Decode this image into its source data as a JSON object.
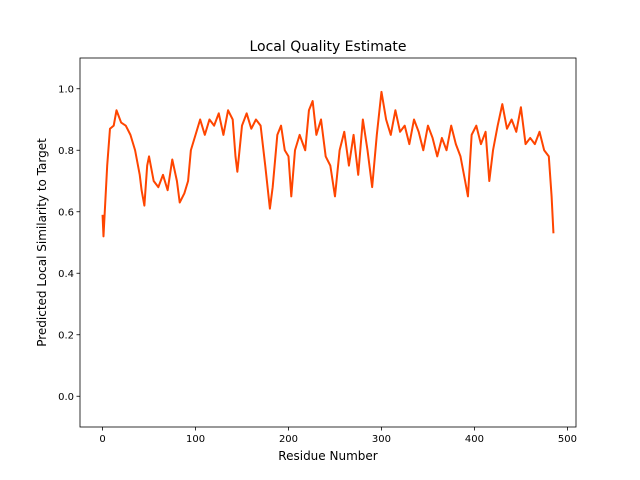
{
  "chart_data": {
    "type": "line",
    "title": "Local Quality Estimate",
    "xlabel": "Residue Number",
    "ylabel": "Predicted Local Similarity to Target",
    "color": "#ff4500",
    "x": [
      0,
      1,
      5,
      8,
      12,
      15,
      20,
      25,
      30,
      35,
      40,
      42,
      45,
      48,
      50,
      55,
      60,
      65,
      70,
      75,
      80,
      83,
      88,
      92,
      95,
      100,
      105,
      110,
      115,
      120,
      125,
      130,
      135,
      140,
      143,
      145,
      150,
      155,
      160,
      165,
      170,
      175,
      180,
      183,
      188,
      192,
      196,
      200,
      203,
      207,
      212,
      218,
      222,
      226,
      230,
      235,
      240,
      245,
      250,
      255,
      260,
      265,
      270,
      275,
      280,
      285,
      290,
      295,
      300,
      305,
      310,
      315,
      320,
      325,
      330,
      335,
      340,
      345,
      350,
      355,
      360,
      365,
      370,
      375,
      380,
      385,
      390,
      393,
      397,
      402,
      407,
      412,
      416,
      420,
      425,
      430,
      435,
      440,
      445,
      450,
      455,
      460,
      465,
      470,
      475,
      480,
      483,
      485
    ],
    "values": [
      0.59,
      0.52,
      0.75,
      0.87,
      0.88,
      0.93,
      0.89,
      0.88,
      0.85,
      0.8,
      0.72,
      0.67,
      0.62,
      0.75,
      0.78,
      0.7,
      0.68,
      0.72,
      0.67,
      0.77,
      0.7,
      0.63,
      0.66,
      0.7,
      0.8,
      0.85,
      0.9,
      0.85,
      0.9,
      0.88,
      0.92,
      0.85,
      0.93,
      0.9,
      0.78,
      0.73,
      0.88,
      0.92,
      0.87,
      0.9,
      0.88,
      0.75,
      0.61,
      0.68,
      0.85,
      0.88,
      0.8,
      0.78,
      0.65,
      0.8,
      0.85,
      0.8,
      0.93,
      0.96,
      0.85,
      0.9,
      0.78,
      0.75,
      0.65,
      0.8,
      0.86,
      0.75,
      0.85,
      0.72,
      0.9,
      0.8,
      0.68,
      0.85,
      0.99,
      0.9,
      0.85,
      0.93,
      0.86,
      0.88,
      0.82,
      0.9,
      0.86,
      0.8,
      0.88,
      0.84,
      0.78,
      0.84,
      0.8,
      0.88,
      0.82,
      0.78,
      0.7,
      0.65,
      0.85,
      0.88,
      0.82,
      0.86,
      0.7,
      0.8,
      0.88,
      0.95,
      0.87,
      0.9,
      0.86,
      0.94,
      0.82,
      0.84,
      0.82,
      0.86,
      0.8,
      0.78,
      0.65,
      0.53
    ],
    "xlim": [
      -24.25,
      509.25
    ],
    "xticks": [
      0,
      100,
      200,
      300,
      400,
      500
    ],
    "ylim": [
      -0.1,
      1.1
    ],
    "yticks": [
      {
        "value": 0,
        "label": "0.0"
      },
      0.2,
      0.4,
      0.6,
      0.8,
      {
        "value": 1,
        "label": "1.0"
      }
    ]
  }
}
